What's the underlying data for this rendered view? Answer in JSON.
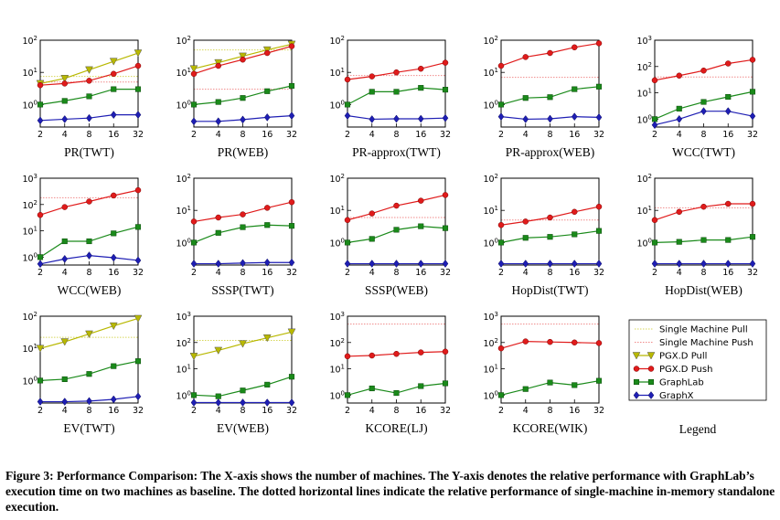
{
  "caption": "Figure 3: Performance Comparison: The X-axis shows the number of machines. The Y-axis denotes the relative performance with GraphLab’s execution time on two machines as baseline. The dotted horizontal lines indicate the relative performance of single-machine in-memory standalone execution.",
  "legend": {
    "title": "Legend",
    "items": [
      {
        "key": "sm_pull",
        "label": "Single Machine Pull"
      },
      {
        "key": "sm_push",
        "label": "Single Machine Push"
      },
      {
        "key": "pgx_pull",
        "label": "PGX.D Pull"
      },
      {
        "key": "pgx_push",
        "label": "PGX.D Push"
      },
      {
        "key": "graphlab",
        "label": "GraphLab"
      },
      {
        "key": "graphx",
        "label": "GraphX"
      }
    ]
  },
  "colors": {
    "pgx_pull": "#b8b800",
    "pgx_push": "#e01b1b",
    "graphlab": "#1a8a1a",
    "graphx": "#1e1eb4",
    "sm_pull": "#d7d75a",
    "sm_push": "#f08a8a"
  },
  "chart_data": [
    {
      "type": "line",
      "title": "PR(TWT)",
      "x": [
        2,
        4,
        8,
        16,
        32
      ],
      "ylim": [
        0.2,
        100
      ],
      "log_y": true,
      "series": [
        {
          "name": "PGX.D Pull",
          "key": "pgx_pull",
          "values": [
            4.5,
            6.5,
            12,
            22,
            40
          ]
        },
        {
          "name": "PGX.D Push",
          "key": "pgx_push",
          "values": [
            4,
            4.5,
            5.5,
            9,
            16
          ]
        },
        {
          "name": "GraphLab",
          "key": "graphlab",
          "values": [
            1,
            1.3,
            1.8,
            3,
            3
          ]
        },
        {
          "name": "GraphX",
          "key": "graphx",
          "values": [
            0.32,
            0.35,
            0.38,
            0.48,
            0.48
          ]
        }
      ],
      "baselines": [
        {
          "name": "Single Machine Pull",
          "key": "sm_pull",
          "value": 7.5
        },
        {
          "name": "Single Machine Push",
          "key": "sm_push",
          "value": 5
        }
      ]
    },
    {
      "type": "line",
      "title": "PR(WEB)",
      "x": [
        2,
        4,
        8,
        16,
        32
      ],
      "ylim": [
        0.2,
        100
      ],
      "log_y": true,
      "series": [
        {
          "name": "PGX.D Pull",
          "key": "pgx_pull",
          "values": [
            13,
            20,
            32,
            50,
            75
          ]
        },
        {
          "name": "PGX.D Push",
          "key": "pgx_push",
          "values": [
            9,
            16,
            25,
            40,
            65
          ]
        },
        {
          "name": "GraphLab",
          "key": "graphlab",
          "values": [
            1,
            1.2,
            1.6,
            2.6,
            3.8
          ]
        },
        {
          "name": "GraphX",
          "key": "graphx",
          "values": [
            0.3,
            0.3,
            0.34,
            0.4,
            0.45
          ]
        }
      ],
      "baselines": [
        {
          "name": "Single Machine Pull",
          "key": "sm_pull",
          "value": 50
        },
        {
          "name": "Single Machine Push",
          "key": "sm_push",
          "value": 3
        }
      ]
    },
    {
      "type": "line",
      "title": "PR-approx(TWT)",
      "x": [
        2,
        4,
        8,
        16,
        32
      ],
      "ylim": [
        0.2,
        100
      ],
      "log_y": true,
      "series": [
        {
          "name": "PGX.D Push",
          "key": "pgx_push",
          "values": [
            6,
            7.5,
            10,
            13,
            20
          ]
        },
        {
          "name": "GraphLab",
          "key": "graphlab",
          "values": [
            1,
            2.5,
            2.5,
            3.3,
            2.9
          ]
        },
        {
          "name": "GraphX",
          "key": "graphx",
          "values": [
            0.45,
            0.35,
            0.36,
            0.36,
            0.38
          ]
        }
      ],
      "baselines": [
        {
          "name": "Single Machine Push",
          "key": "sm_push",
          "value": 8
        }
      ]
    },
    {
      "type": "line",
      "title": "PR-approx(WEB)",
      "x": [
        2,
        4,
        8,
        16,
        32
      ],
      "ylim": [
        0.2,
        100
      ],
      "log_y": true,
      "series": [
        {
          "name": "PGX.D Push",
          "key": "pgx_push",
          "values": [
            16,
            30,
            40,
            60,
            80
          ]
        },
        {
          "name": "GraphLab",
          "key": "graphlab",
          "values": [
            1,
            1.6,
            1.7,
            3,
            3.6
          ]
        },
        {
          "name": "GraphX",
          "key": "graphx",
          "values": [
            0.42,
            0.35,
            0.36,
            0.42,
            0.4
          ]
        }
      ],
      "baselines": [
        {
          "name": "Single Machine Push",
          "key": "sm_push",
          "value": 7
        }
      ]
    },
    {
      "type": "line",
      "title": "WCC(TWT)",
      "x": [
        2,
        4,
        8,
        16,
        32
      ],
      "ylim": [
        0.5,
        1000
      ],
      "log_y": true,
      "series": [
        {
          "name": "PGX.D Push",
          "key": "pgx_push",
          "values": [
            30,
            45,
            70,
            130,
            180
          ]
        },
        {
          "name": "GraphLab",
          "key": "graphlab",
          "values": [
            1,
            2.5,
            4.5,
            7,
            11
          ]
        },
        {
          "name": "GraphX",
          "key": "graphx",
          "values": [
            0.6,
            1,
            2,
            2,
            1.3
          ]
        }
      ],
      "baselines": [
        {
          "name": "Single Machine Push",
          "key": "sm_push",
          "value": 40
        }
      ]
    },
    {
      "type": "line",
      "title": "WCC(WEB)",
      "x": [
        2,
        4,
        8,
        16,
        32
      ],
      "ylim": [
        0.5,
        1000
      ],
      "log_y": true,
      "series": [
        {
          "name": "PGX.D Push",
          "key": "pgx_push",
          "values": [
            40,
            80,
            130,
            220,
            350
          ]
        },
        {
          "name": "GraphLab",
          "key": "graphlab",
          "values": [
            1,
            4,
            4,
            8,
            14
          ]
        },
        {
          "name": "GraphX",
          "key": "graphx",
          "values": [
            0.55,
            0.85,
            1.15,
            0.95,
            0.75
          ]
        }
      ],
      "baselines": [
        {
          "name": "Single Machine Push",
          "key": "sm_push",
          "value": 180
        }
      ]
    },
    {
      "type": "line",
      "title": "SSSP(TWT)",
      "x": [
        2,
        4,
        8,
        16,
        32
      ],
      "ylim": [
        0.2,
        100
      ],
      "log_y": true,
      "series": [
        {
          "name": "PGX.D Push",
          "key": "pgx_push",
          "values": [
            4.5,
            6,
            7.5,
            12,
            18
          ]
        },
        {
          "name": "GraphLab",
          "key": "graphlab",
          "values": [
            1,
            2,
            3,
            3.5,
            3.3
          ]
        },
        {
          "name": "GraphX",
          "key": "graphx",
          "values": [
            0.22,
            0.22,
            0.23,
            0.24,
            0.24
          ]
        }
      ],
      "baselines": []
    },
    {
      "type": "line",
      "title": "SSSP(WEB)",
      "x": [
        2,
        4,
        8,
        16,
        32
      ],
      "ylim": [
        0.2,
        100
      ],
      "log_y": true,
      "series": [
        {
          "name": "PGX.D Push",
          "key": "pgx_push",
          "values": [
            5,
            8,
            14,
            20,
            30
          ]
        },
        {
          "name": "GraphLab",
          "key": "graphlab",
          "values": [
            1,
            1.3,
            2.5,
            3.2,
            2.8
          ]
        },
        {
          "name": "GraphX",
          "key": "graphx",
          "values": [
            0.22,
            0.22,
            0.22,
            0.22,
            0.22
          ]
        }
      ],
      "baselines": [
        {
          "name": "Single Machine Push",
          "key": "sm_push",
          "value": 6
        }
      ]
    },
    {
      "type": "line",
      "title": "HopDist(TWT)",
      "x": [
        2,
        4,
        8,
        16,
        32
      ],
      "ylim": [
        0.2,
        100
      ],
      "log_y": true,
      "series": [
        {
          "name": "PGX.D Push",
          "key": "pgx_push",
          "values": [
            3.5,
            4.5,
            6,
            9,
            13
          ]
        },
        {
          "name": "GraphLab",
          "key": "graphlab",
          "values": [
            1,
            1.4,
            1.5,
            1.8,
            2.3
          ]
        },
        {
          "name": "GraphX",
          "key": "graphx",
          "values": [
            0.22,
            0.22,
            0.22,
            0.22,
            0.22
          ]
        }
      ],
      "baselines": [
        {
          "name": "Single Machine Push",
          "key": "sm_push",
          "value": 5
        }
      ]
    },
    {
      "type": "line",
      "title": "HopDist(WEB)",
      "x": [
        2,
        4,
        8,
        16,
        32
      ],
      "ylim": [
        0.2,
        100
      ],
      "log_y": true,
      "series": [
        {
          "name": "PGX.D Push",
          "key": "pgx_push",
          "values": [
            5,
            9,
            13,
            16,
            16
          ]
        },
        {
          "name": "GraphLab",
          "key": "graphlab",
          "values": [
            1,
            1.05,
            1.2,
            1.2,
            1.5
          ]
        },
        {
          "name": "GraphX",
          "key": "graphx",
          "values": [
            0.22,
            0.22,
            0.22,
            0.22,
            0.22
          ]
        }
      ],
      "baselines": [
        {
          "name": "Single Machine Push",
          "key": "sm_push",
          "value": 12
        }
      ]
    },
    {
      "type": "line",
      "title": "EV(TWT)",
      "x": [
        2,
        4,
        8,
        16,
        32
      ],
      "ylim": [
        0.2,
        100
      ],
      "log_y": true,
      "series": [
        {
          "name": "PGX.D Pull",
          "key": "pgx_pull",
          "values": [
            10,
            16,
            28,
            50,
            85
          ]
        },
        {
          "name": "GraphLab",
          "key": "graphlab",
          "values": [
            1,
            1.1,
            1.6,
            2.8,
            4
          ]
        },
        {
          "name": "GraphX",
          "key": "graphx",
          "values": [
            0.22,
            0.22,
            0.23,
            0.26,
            0.32
          ]
        }
      ],
      "baselines": [
        {
          "name": "Single Machine Pull",
          "key": "sm_pull",
          "value": 22
        }
      ]
    },
    {
      "type": "line",
      "title": "EV(WEB)",
      "x": [
        2,
        4,
        8,
        16,
        32
      ],
      "ylim": [
        0.5,
        1000
      ],
      "log_y": true,
      "series": [
        {
          "name": "PGX.D Pull",
          "key": "pgx_pull",
          "values": [
            30,
            50,
            90,
            150,
            250
          ]
        },
        {
          "name": "GraphLab",
          "key": "graphlab",
          "values": [
            1,
            0.9,
            1.5,
            2.5,
            5
          ]
        },
        {
          "name": "GraphX",
          "key": "graphx",
          "values": [
            0.52,
            0.52,
            0.52,
            0.52,
            0.52
          ]
        }
      ],
      "baselines": [
        {
          "name": "Single Machine Pull",
          "key": "sm_pull",
          "value": 120
        }
      ]
    },
    {
      "type": "line",
      "title": "KCORE(LJ)",
      "x": [
        2,
        4,
        8,
        16,
        32
      ],
      "ylim": [
        0.5,
        1000
      ],
      "log_y": true,
      "series": [
        {
          "name": "PGX.D Push",
          "key": "pgx_push",
          "values": [
            30,
            32,
            37,
            42,
            45
          ]
        },
        {
          "name": "GraphLab",
          "key": "graphlab",
          "values": [
            1,
            1.8,
            1.2,
            2.2,
            2.8
          ]
        }
      ],
      "baselines": [
        {
          "name": "Single Machine Push",
          "key": "sm_push",
          "value": 500
        }
      ]
    },
    {
      "type": "line",
      "title": "KCORE(WIK)",
      "x": [
        2,
        4,
        8,
        16,
        32
      ],
      "ylim": [
        0.5,
        1000
      ],
      "log_y": true,
      "series": [
        {
          "name": "PGX.D Push",
          "key": "pgx_push",
          "values": [
            60,
            110,
            105,
            100,
            95
          ]
        },
        {
          "name": "GraphLab",
          "key": "graphlab",
          "values": [
            1,
            1.7,
            3,
            2.4,
            3.5
          ]
        }
      ],
      "baselines": [
        {
          "name": "Single Machine Push",
          "key": "sm_push",
          "value": 500
        }
      ]
    }
  ]
}
